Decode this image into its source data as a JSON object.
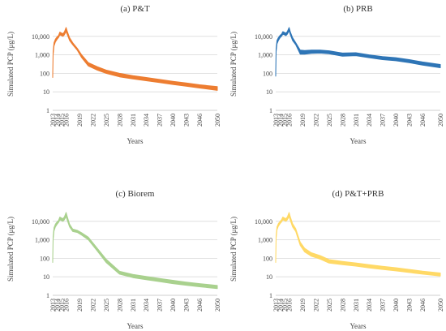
{
  "chart_data": [
    {
      "type": "area",
      "title": "(a) P&T",
      "xlabel": "Years",
      "ylabel": "Simulated PCP (μg/L)",
      "yscale": "log",
      "ylim": [
        1,
        100000
      ],
      "y_ticks": [
        "1",
        "10",
        "100",
        "1,000",
        "10,000"
      ],
      "x_ticks": [
        "2013",
        "2014",
        "2015",
        "2016",
        "2019",
        "2022",
        "2025",
        "2028",
        "2031",
        "2034",
        "2037",
        "2040",
        "2043",
        "2046",
        "2050"
      ],
      "color": "#ED7D31",
      "series": [
        {
          "x": [
            2013,
            2013.1,
            2013.3,
            2013.6,
            2014,
            2014.3,
            2014.6,
            2015,
            2015.3,
            2015.6,
            2016,
            2016.3,
            2016.8,
            2017.5,
            2018.5,
            2019.5,
            2021,
            2023,
            2025,
            2028,
            2031,
            2034,
            2037,
            2040,
            2043,
            2046,
            2050
          ],
          "lower": [
            60,
            1000,
            3000,
            5000,
            7000,
            8500,
            12000,
            11000,
            10000,
            12000,
            18000,
            12000,
            6000,
            3500,
            1800,
            700,
            250,
            150,
            100,
            65,
            50,
            40,
            32,
            25,
            20,
            16,
            12
          ],
          "upper": [
            90,
            1500,
            4500,
            7000,
            9500,
            11000,
            17000,
            15000,
            14000,
            17000,
            30000,
            18000,
            8500,
            4500,
            2300,
            1000,
            380,
            230,
            150,
            100,
            75,
            60,
            47,
            37,
            30,
            24,
            19
          ]
        }
      ]
    },
    {
      "type": "area",
      "title": "(b) PRB",
      "xlabel": "Years",
      "ylabel": "Simulated PCP (μg/L)",
      "yscale": "log",
      "ylim": [
        1,
        100000
      ],
      "y_ticks": [
        "1",
        "10",
        "100",
        "1,000",
        "10,000"
      ],
      "x_ticks": [
        "2013",
        "2014",
        "2015",
        "2016",
        "2019",
        "2022",
        "2025",
        "2028",
        "2031",
        "2034",
        "2037",
        "2040",
        "2043",
        "2046",
        "2050"
      ],
      "color": "#2E75B6",
      "series": [
        {
          "x": [
            2013,
            2013.1,
            2013.3,
            2013.6,
            2014,
            2014.3,
            2014.6,
            2015,
            2015.3,
            2015.6,
            2016,
            2016.3,
            2016.8,
            2017.5,
            2018.5,
            2019.5,
            2021,
            2023,
            2025,
            2028,
            2031,
            2034,
            2037,
            2040,
            2043,
            2046,
            2050
          ],
          "lower": [
            70,
            1500,
            4000,
            6000,
            8500,
            10000,
            13000,
            12000,
            11000,
            13000,
            20000,
            12000,
            6000,
            3500,
            1100,
            1100,
            1200,
            1250,
            1150,
            850,
            900,
            700,
            550,
            480,
            380,
            280,
            200
          ],
          "upper": [
            100,
            2200,
            6000,
            8500,
            11500,
            13000,
            18000,
            16000,
            15000,
            18000,
            30000,
            17000,
            8500,
            4500,
            1800,
            1700,
            1800,
            1800,
            1650,
            1250,
            1300,
            1000,
            800,
            700,
            550,
            410,
            300
          ]
        }
      ]
    },
    {
      "type": "area",
      "title": "(c) Biorem",
      "xlabel": "Years",
      "ylabel": "Simulated PCP (μg/L)",
      "yscale": "log",
      "ylim": [
        1,
        100000
      ],
      "y_ticks": [
        "1",
        "10",
        "100",
        "1,000",
        "10,000"
      ],
      "x_ticks": [
        "2013",
        "2014",
        "2015",
        "2016",
        "2019",
        "2022",
        "2025",
        "2028",
        "2031",
        "2034",
        "2037",
        "2040",
        "2043",
        "2046",
        "2050"
      ],
      "color": "#A9D18E",
      "series": [
        {
          "x": [
            2013,
            2013.1,
            2013.3,
            2013.6,
            2014,
            2014.3,
            2014.6,
            2015,
            2015.3,
            2015.6,
            2016,
            2016.3,
            2016.8,
            2017.5,
            2018.5,
            2019.5,
            2021,
            2023,
            2025,
            2028,
            2031,
            2034,
            2037,
            2040,
            2043,
            2046,
            2050
          ],
          "lower": [
            60,
            1000,
            3000,
            5000,
            7000,
            8500,
            12000,
            11000,
            10000,
            12000,
            18000,
            11000,
            5000,
            2800,
            2500,
            1800,
            1000,
            250,
            60,
            14,
            9,
            7,
            5.5,
            4.3,
            3.5,
            2.9,
            2.3
          ],
          "upper": [
            90,
            1500,
            4500,
            7000,
            9500,
            11000,
            17000,
            15000,
            14000,
            17000,
            30000,
            17000,
            7000,
            3800,
            3300,
            2400,
            1400,
            350,
            90,
            20,
            13.5,
            10.5,
            8.2,
            6.5,
            5.2,
            4.3,
            3.4
          ]
        }
      ]
    },
    {
      "type": "area",
      "title": "(d) P&T+PRB",
      "xlabel": "Years",
      "ylabel": "Simulated PCP (μg/L)",
      "yscale": "log",
      "ylim": [
        1,
        100000
      ],
      "y_ticks": [
        "1",
        "10",
        "100",
        "1,000",
        "10,000"
      ],
      "x_ticks": [
        "2013",
        "2014",
        "2015",
        "2016",
        "2019",
        "2022",
        "2025",
        "2028",
        "2031",
        "2034",
        "2037",
        "2040",
        "2043",
        "2046",
        "2050"
      ],
      "color": "#FFD966",
      "series": [
        {
          "x": [
            2013,
            2013.1,
            2013.3,
            2013.6,
            2014,
            2014.3,
            2014.6,
            2015,
            2015.3,
            2015.6,
            2016,
            2016.3,
            2016.8,
            2017.5,
            2018.5,
            2019.5,
            2021,
            2023,
            2025,
            2028,
            2031,
            2034,
            2037,
            2040,
            2043,
            2046,
            2050
          ],
          "lower": [
            60,
            1200,
            3500,
            5500,
            7500,
            9000,
            12000,
            11000,
            10000,
            12000,
            18000,
            11000,
            5000,
            2800,
            500,
            220,
            130,
            90,
            55,
            45,
            38,
            30,
            25,
            21,
            17,
            14,
            11
          ],
          "upper": [
            90,
            1700,
            5000,
            7500,
            10000,
            12000,
            17000,
            15000,
            14000,
            17000,
            30000,
            17000,
            7500,
            4000,
            750,
            350,
            200,
            140,
            85,
            68,
            56,
            45,
            37,
            31,
            25,
            20,
            16
          ]
        }
      ]
    }
  ]
}
